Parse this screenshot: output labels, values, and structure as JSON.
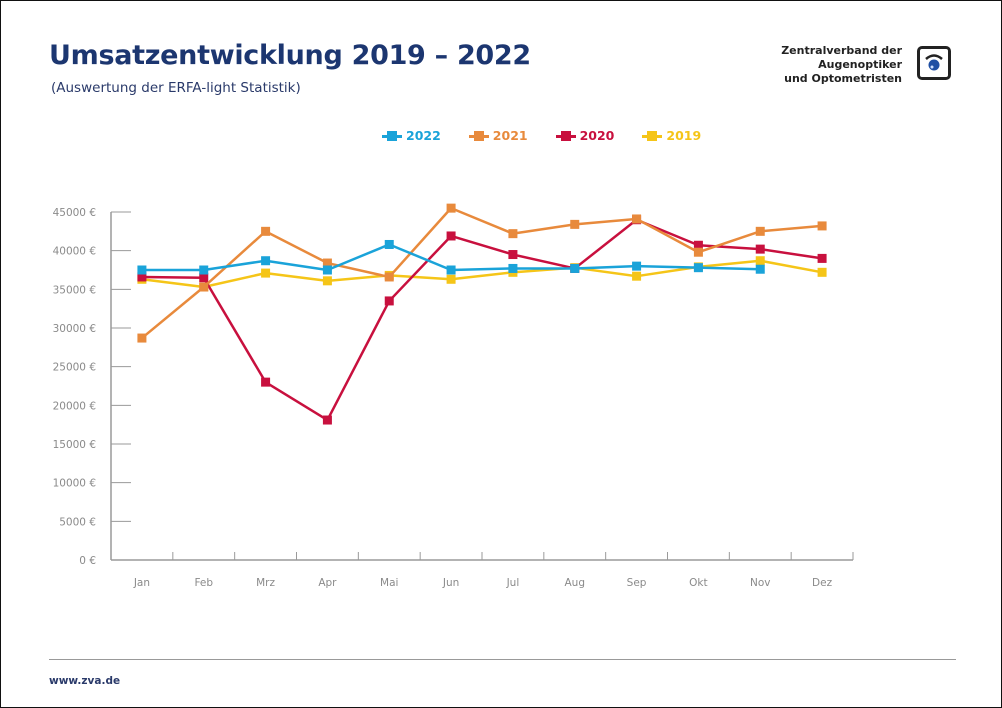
{
  "header": {
    "title": "Umsatzentwicklung 2019 – 2022",
    "subtitle": "(Auswertung der ERFA-light Statistik)",
    "org_lines": [
      "Zentralverband der",
      "Augenoptiker",
      "und Optometristen"
    ],
    "logo_icon": "eye-icon"
  },
  "footer": {
    "url": "www.zva.de"
  },
  "chart_data": {
    "type": "line",
    "title": "Umsatzentwicklung 2019 – 2022",
    "subtitle": "(Auswertung der ERFA-light Statistik)",
    "xlabel": "",
    "ylabel": "",
    "categories": [
      "Jan",
      "Feb",
      "Mrz",
      "Apr",
      "Mai",
      "Jun",
      "Jul",
      "Aug",
      "Sep",
      "Okt",
      "Nov",
      "Dez"
    ],
    "ylim": [
      0,
      45000
    ],
    "yticks": [
      0,
      5000,
      10000,
      15000,
      20000,
      25000,
      30000,
      35000,
      40000,
      45000
    ],
    "ytick_labels": [
      "0 €",
      "5000 €",
      "10000 €",
      "15000 €",
      "20000 €",
      "25000 €",
      "30000 €",
      "35000 €",
      "40000 €",
      "45000 €"
    ],
    "grid": false,
    "legend_position": "top-center",
    "series": [
      {
        "name": "2022",
        "color": "#1aa3d9",
        "values": [
          37500,
          37500,
          38700,
          37500,
          40800,
          37500,
          37700,
          37700,
          38000,
          37800,
          37600,
          null
        ]
      },
      {
        "name": "2021",
        "color": "#e88a3c",
        "values": [
          28700,
          35300,
          42500,
          38400,
          36600,
          45500,
          42200,
          43400,
          44100,
          39800,
          42500,
          43200
        ]
      },
      {
        "name": "2020",
        "color": "#c8103e",
        "values": [
          36600,
          36500,
          23000,
          18100,
          33500,
          41900,
          39500,
          37700,
          44000,
          40700,
          40200,
          39000
        ]
      },
      {
        "name": "2019",
        "color": "#f5c518",
        "values": [
          36300,
          35300,
          37100,
          36100,
          36800,
          36300,
          37200,
          37800,
          36700,
          37900,
          38700,
          37200
        ]
      }
    ]
  }
}
